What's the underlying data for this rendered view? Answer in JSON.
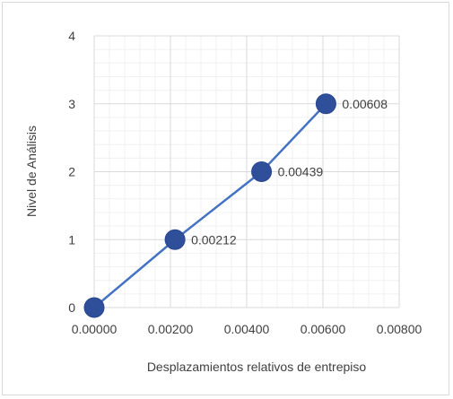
{
  "chart_data": {
    "type": "scatter",
    "title": "",
    "xlabel": "Desplazamientos relativos de entrepiso",
    "ylabel": "Nivel de Análisis",
    "xlim": [
      0,
      0.008
    ],
    "ylim": [
      0,
      4
    ],
    "x_ticks": [
      "0.00000",
      "0.00200",
      "0.00400",
      "0.00600",
      "0.00800"
    ],
    "y_ticks": [
      "0",
      "1",
      "2",
      "3",
      "4"
    ],
    "grid": true,
    "minor_grid": true,
    "legend": "none",
    "series": [
      {
        "x": [
          0.0,
          0.00212,
          0.00439,
          0.00608
        ],
        "y": [
          0,
          1,
          2,
          3
        ],
        "labels": [
          "",
          "0.00212",
          "0.00439",
          "0.00608"
        ],
        "line_color": "#4472c4",
        "marker_color": "#2f4f9a"
      }
    ]
  }
}
